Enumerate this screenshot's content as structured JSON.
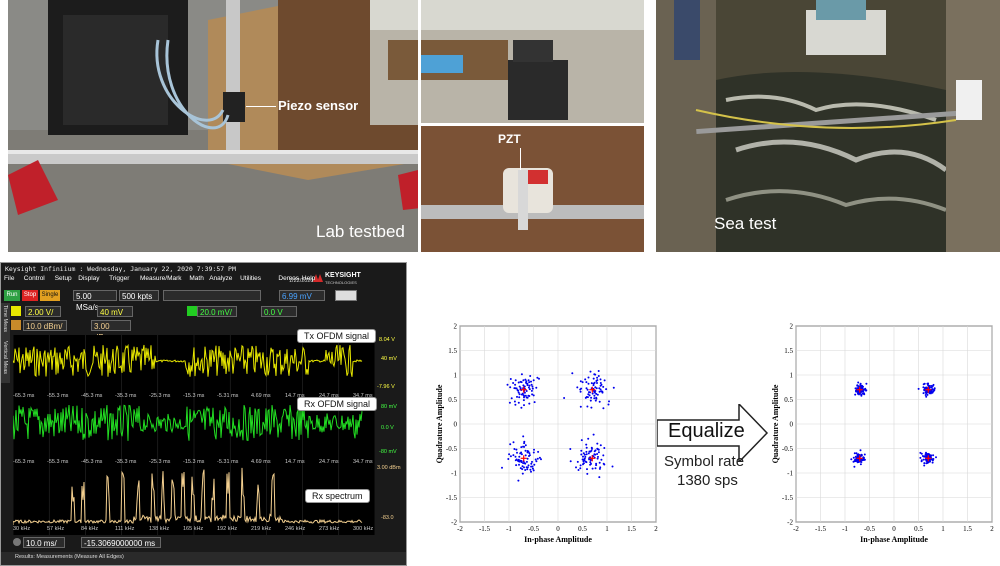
{
  "photos": {
    "lab": {
      "piezo_label": "Piezo sensor",
      "pzt_label": "PZT",
      "caption": "Lab testbed"
    },
    "sea": {
      "caption": "Sea test"
    }
  },
  "scope": {
    "header": "Keysight Infiniium : Wednesday, January 22, 2020 7:39:57 PM",
    "menu": [
      "File",
      "Control",
      "Setup",
      "Display",
      "Trigger",
      "Measure/Mark",
      "Math",
      "Analyze",
      "Utilities",
      "Demos",
      "Help"
    ],
    "brand": "KEYSIGHT",
    "brand_sub": "TECHNOLOGIES",
    "date": "1/22/2020",
    "run_label": "Run",
    "stop_label": "Stop",
    "single_label": "Single",
    "sample_rate": "5.00 MSa/s",
    "points": "500 kpts",
    "trig_level": "6.99 mV",
    "ch1_scale": "2.00 V/",
    "ch1_offset": "40 mV",
    "ch2_scale": "20.0 mV/",
    "ch2_offset": "0.0 V",
    "fft_scale": "10.0 dBm/",
    "fft_offset": "3.00 dBm",
    "side_tabs": [
      "Time Meas",
      "Vertical Meas"
    ],
    "tx_label": "Tx OFDM signal",
    "rx_label": "Rx OFDM signal",
    "spec_label": "Rx spectrum",
    "ch1_right": [
      "8.04 V",
      "40 mV",
      "-7.96 V"
    ],
    "ch2_right": [
      "80 mV",
      "0.0 V",
      "-80 mV"
    ],
    "fft_right": [
      "3.00 dBm",
      "-83.0"
    ],
    "time_ticks": [
      "-65.3 ms",
      "-55.3 ms",
      "-45.3 ms",
      "-35.3 ms",
      "-25.3 ms",
      "-15.3 ms",
      "-5.31 ms",
      "4.69 ms",
      "14.7 ms",
      "24.7 ms",
      "34.7 ms"
    ],
    "freq_ticks": [
      "30 kHz",
      "57 kHz",
      "84 kHz",
      "111 kHz",
      "138 kHz",
      "165 kHz",
      "192 kHz",
      "219 kHz",
      "246 kHz",
      "273 kHz",
      "300 kHz"
    ],
    "timebase": "10.0 ms/",
    "position": "-15.3069000000 ms",
    "results": "Results: Measurements (Measure All Edges)"
  },
  "arrow": {
    "label": "Equalize",
    "subtitle_line1": "Symbol rate",
    "subtitle_line2": "1380 sps"
  },
  "chart_data": [
    {
      "type": "scatter",
      "title": "",
      "xlabel": "In-phase Amplitude",
      "ylabel": "Quadrature Amplitude",
      "xlim": [
        -2,
        2
      ],
      "ylim": [
        -2,
        2
      ],
      "xticks": [
        "-2",
        "-1.5",
        "-1",
        "-0.5",
        "0",
        "0.5",
        "1",
        "1.5",
        "2"
      ],
      "yticks": [
        "-2",
        "-1.5",
        "-1",
        "-0.5",
        "0",
        "0.5",
        "1",
        "1.5",
        "2"
      ],
      "grid": true,
      "clusters": [
        {
          "center": [
            -0.7,
            0.7
          ],
          "spread": 0.28
        },
        {
          "center": [
            0.7,
            0.7
          ],
          "spread": 0.28
        },
        {
          "center": [
            -0.7,
            -0.7
          ],
          "spread": 0.28
        },
        {
          "center": [
            0.7,
            -0.7
          ],
          "spread": 0.28
        }
      ],
      "reference_points": [
        [
          -0.7,
          0.7
        ],
        [
          0.7,
          0.7
        ],
        [
          -0.7,
          -0.7
        ],
        [
          0.7,
          -0.7
        ]
      ],
      "point_color": "#0000ee",
      "ref_color": "#ff0000"
    },
    {
      "type": "scatter",
      "title": "",
      "xlabel": "In-phase Amplitude",
      "ylabel": "Quadrature Amplitude",
      "xlim": [
        -2,
        2
      ],
      "ylim": [
        -2,
        2
      ],
      "xticks": [
        "-2",
        "-1.5",
        "-1",
        "-0.5",
        "0",
        "0.5",
        "1",
        "1.5",
        "2"
      ],
      "yticks": [
        "-2",
        "-1.5",
        "-1",
        "-0.5",
        "0",
        "0.5",
        "1",
        "1.5",
        "2"
      ],
      "grid": true,
      "clusters": [
        {
          "center": [
            -0.7,
            0.7
          ],
          "spread": 0.1
        },
        {
          "center": [
            0.7,
            0.7
          ],
          "spread": 0.1
        },
        {
          "center": [
            -0.7,
            -0.7
          ],
          "spread": 0.1
        },
        {
          "center": [
            0.7,
            -0.7
          ],
          "spread": 0.1
        }
      ],
      "reference_points": [
        [
          -0.7,
          0.7
        ],
        [
          0.7,
          0.7
        ],
        [
          -0.7,
          -0.7
        ],
        [
          0.7,
          -0.7
        ]
      ],
      "point_color": "#0000ee",
      "ref_color": "#ff0000"
    }
  ]
}
